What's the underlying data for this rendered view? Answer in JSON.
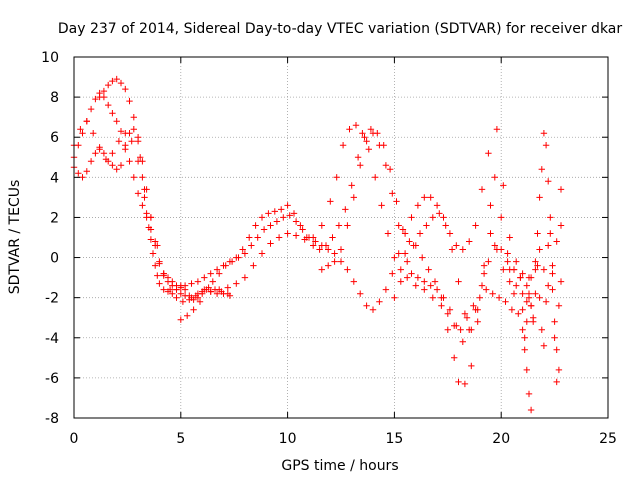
{
  "chart_data": {
    "type": "scatter",
    "title": "Day 237 of 2014, Sidereal Day-to-day VTEC variation (SDTVAR) for receiver dkar",
    "xlabel": "GPS time / hours",
    "ylabel": "SDTVAR / TECUs",
    "xlim": [
      0,
      25
    ],
    "ylim": [
      -8,
      10
    ],
    "xticks": [
      0,
      5,
      10,
      15,
      20,
      25
    ],
    "yticks": [
      -8,
      -6,
      -4,
      -2,
      0,
      2,
      4,
      6,
      8,
      10
    ],
    "grid": true,
    "legend": "none",
    "marker": "+",
    "colors": {
      "series": "#ff0000",
      "axis": "#000000",
      "grid": "#a0a0a0",
      "background": "#ffffff"
    },
    "series": [
      {
        "name": "trace-a",
        "x": [
          0.0,
          0.2,
          0.4,
          0.6,
          0.8,
          1.0,
          1.2,
          1.4,
          1.6,
          1.8,
          2.0,
          2.2,
          2.4,
          2.6,
          2.8,
          3.0,
          3.1,
          3.2,
          3.3,
          3.4,
          3.5,
          3.6,
          3.7,
          3.8,
          3.9,
          4.0,
          4.2,
          4.4,
          4.6,
          4.8,
          5.0,
          5.2,
          5.4,
          5.6,
          5.8,
          6.0,
          6.4,
          6.8,
          7.2,
          7.6,
          8.0,
          8.4,
          8.8,
          9.2,
          9.6,
          10.0,
          10.4,
          10.8,
          11.2,
          11.6,
          12.0,
          12.3,
          12.6,
          12.9,
          13.2,
          13.5,
          13.8,
          14.1,
          14.4,
          14.7,
          15.0,
          15.3,
          15.6,
          16.0,
          16.4,
          16.8,
          17.2,
          17.5,
          17.8,
          18.0,
          18.3,
          18.6,
          18.9,
          19.2,
          19.5,
          19.8,
          20.1,
          20.4,
          20.7,
          21.0,
          21.2,
          21.4
        ],
        "y": [
          4.5,
          4.2,
          4.0,
          4.3,
          4.8,
          5.2,
          5.5,
          5.2,
          4.8,
          4.6,
          4.4,
          4.6,
          5.4,
          6.2,
          6.4,
          5.8,
          5.0,
          4.0,
          3.0,
          2.2,
          1.5,
          0.9,
          0.2,
          -0.4,
          -0.9,
          -1.3,
          -1.6,
          -1.7,
          -1.8,
          -1.6,
          -1.4,
          -1.6,
          -1.9,
          -2.1,
          -2.0,
          -1.8,
          -1.7,
          -1.6,
          -1.5,
          -1.3,
          -1.0,
          -0.4,
          0.2,
          0.7,
          1.0,
          1.2,
          1.1,
          0.9,
          1.0,
          1.6,
          2.8,
          4.0,
          5.6,
          6.4,
          6.6,
          6.2,
          5.4,
          4.0,
          2.6,
          1.2,
          0.0,
          -0.6,
          -1.0,
          -1.4,
          -1.6,
          -2.0,
          -2.4,
          -3.6,
          -5.0,
          -6.2,
          -6.3,
          -5.4,
          -3.2,
          -0.8,
          1.2,
          0.4,
          -0.6,
          -1.2,
          -1.4,
          -1.8,
          -2.2,
          -2.4
        ]
      },
      {
        "name": "trace-b",
        "x": [
          0.0,
          0.2,
          0.4,
          0.6,
          0.8,
          1.0,
          1.2,
          1.4,
          1.6,
          1.8,
          2.0,
          2.2,
          2.4,
          2.6,
          2.8,
          3.0,
          3.2,
          3.4,
          3.6,
          3.8,
          4.0,
          4.2,
          4.4,
          4.6,
          4.8,
          5.0,
          5.2,
          5.5,
          5.8,
          6.1,
          6.4,
          6.7,
          7.0,
          7.3
        ],
        "y": [
          5.0,
          5.6,
          6.2,
          6.8,
          7.4,
          7.9,
          8.2,
          8.0,
          7.6,
          7.2,
          6.8,
          6.3,
          5.6,
          4.8,
          4.0,
          3.2,
          2.6,
          2.0,
          1.4,
          0.6,
          -0.3,
          -0.9,
          -1.2,
          -1.4,
          -1.6,
          -1.8,
          -1.9,
          -2.0,
          -1.8,
          -1.6,
          -1.7,
          -1.8,
          -1.8,
          -1.9
        ]
      },
      {
        "name": "trace-c",
        "x": [
          0.0,
          0.3,
          0.6,
          0.9,
          1.2,
          1.5,
          1.8,
          2.1,
          2.4,
          2.7,
          3.0,
          3.3,
          3.6,
          3.9,
          4.2,
          4.5,
          4.8,
          5.1,
          5.4,
          5.7,
          6.0,
          6.3,
          6.6,
          6.9,
          7.2
        ],
        "y": [
          5.6,
          6.4,
          6.8,
          6.2,
          5.4,
          4.9,
          5.2,
          5.8,
          6.2,
          5.8,
          4.8,
          3.4,
          2.0,
          0.6,
          -0.8,
          -1.6,
          -2.0,
          -2.2,
          -2.1,
          -1.9,
          -1.7,
          -1.5,
          -1.6,
          -1.7,
          -1.8
        ]
      },
      {
        "name": "trace-d",
        "x": [
          1.2,
          1.4,
          1.6,
          1.8,
          2.0,
          2.2,
          2.4,
          2.6,
          2.8,
          3.0,
          3.2,
          3.4,
          3.6,
          3.8,
          4.0,
          4.2,
          4.4,
          4.6,
          4.8,
          5.0,
          5.2,
          5.5,
          5.8,
          6.1,
          6.4,
          6.7,
          7.0,
          7.3,
          7.6,
          7.9,
          8.2,
          8.5,
          8.8,
          9.1,
          9.4,
          9.7,
          10.0,
          10.3,
          10.6,
          10.9,
          11.2,
          11.5,
          11.8,
          12.1,
          12.4,
          12.7,
          13.0,
          13.3,
          13.6,
          13.9,
          14.2,
          14.5,
          14.8,
          15.1,
          15.4,
          15.7,
          16.0,
          16.3,
          16.6,
          16.9,
          17.2,
          17.5,
          17.8,
          18.1,
          18.4,
          18.7,
          19.0,
          19.3,
          19.6,
          19.9,
          20.2,
          20.5
        ],
        "y": [
          8.0,
          8.3,
          8.6,
          8.8,
          8.9,
          8.7,
          8.4,
          7.8,
          7.0,
          6.0,
          4.8,
          3.4,
          2.0,
          0.8,
          -0.2,
          -0.8,
          -1.0,
          -1.2,
          -1.4,
          -1.5,
          -1.4,
          -1.3,
          -1.2,
          -1.0,
          -0.8,
          -0.6,
          -0.4,
          -0.2,
          0.0,
          0.4,
          1.0,
          1.6,
          2.0,
          2.2,
          2.3,
          2.4,
          2.6,
          2.2,
          1.6,
          1.0,
          0.6,
          0.4,
          0.6,
          1.0,
          1.6,
          2.4,
          3.6,
          5.0,
          6.0,
          6.4,
          6.2,
          5.6,
          4.4,
          2.8,
          1.4,
          0.8,
          0.6,
          0.0,
          -0.6,
          -1.2,
          -2.0,
          -2.8,
          -3.4,
          -3.6,
          -3.0,
          -2.4,
          -2.0,
          -1.6,
          -1.8,
          -2.0,
          -2.2,
          -2.6
        ]
      },
      {
        "name": "trace-e",
        "x": [
          5.0,
          5.3,
          5.6,
          5.9,
          6.2,
          6.5,
          6.8,
          7.1,
          7.4,
          7.7,
          8.0,
          8.3,
          8.6,
          8.9,
          9.2,
          9.5,
          9.8,
          10.1,
          10.4,
          10.7,
          11.0,
          11.3,
          11.6,
          11.9,
          12.2,
          12.5,
          12.8,
          13.1,
          13.4,
          13.7,
          14.0,
          14.3,
          14.6,
          14.9,
          15.2,
          15.5,
          15.8,
          16.1,
          16.4,
          16.7,
          17.0,
          17.3,
          17.6,
          17.9,
          18.2,
          18.5,
          18.8,
          19.1,
          19.4,
          19.7,
          20.0,
          20.3,
          20.6,
          20.9,
          21.2
        ],
        "y": [
          -3.1,
          -2.9,
          -2.6,
          -2.2,
          -1.6,
          -1.2,
          -0.8,
          -0.4,
          -0.2,
          0.0,
          0.2,
          0.6,
          1.0,
          1.4,
          1.6,
          1.8,
          2.0,
          2.1,
          1.8,
          1.4,
          1.0,
          0.8,
          0.6,
          0.4,
          0.2,
          -0.2,
          -0.6,
          -1.2,
          -1.8,
          -2.4,
          -2.6,
          -2.2,
          -1.6,
          -0.8,
          0.2,
          1.2,
          2.0,
          2.6,
          3.0,
          3.0,
          2.6,
          2.0,
          1.2,
          0.6,
          0.4,
          0.8,
          1.6,
          3.4,
          5.2,
          4.0,
          2.0,
          0.2,
          -0.6,
          -1.0,
          -1.4
        ]
      },
      {
        "name": "trace-f",
        "x": [
          11.6,
          11.9,
          12.2,
          12.5,
          12.8,
          13.1,
          13.4,
          13.7,
          14.0,
          14.3,
          14.6,
          14.9,
          15.2,
          15.5,
          15.8,
          16.1,
          16.4,
          16.7,
          17.0,
          17.3,
          17.6,
          17.9,
          18.2,
          18.5,
          18.8,
          19.1,
          19.4,
          19.7,
          20.0,
          20.3,
          20.6,
          20.9
        ],
        "y": [
          -0.6,
          -0.4,
          -0.2,
          0.4,
          1.6,
          3.0,
          4.6,
          5.8,
          6.2,
          5.6,
          4.6,
          3.2,
          1.6,
          0.2,
          -0.8,
          -1.0,
          -1.2,
          -1.4,
          -1.6,
          -2.0,
          -2.6,
          -3.4,
          -4.2,
          -3.6,
          -2.6,
          -1.4,
          -0.2,
          0.6,
          0.4,
          -0.2,
          -0.6,
          -1.0
        ]
      },
      {
        "name": "trace-g",
        "x": [
          15.0,
          15.3,
          15.6,
          15.9,
          16.2,
          16.5,
          16.8,
          17.1,
          17.4,
          17.7,
          18.0,
          18.3,
          18.6,
          18.9,
          19.2,
          19.5,
          19.8,
          20.1,
          20.4,
          20.7,
          21.0,
          21.3
        ],
        "y": [
          -2.0,
          -1.2,
          -0.2,
          0.6,
          1.2,
          1.6,
          2.0,
          2.2,
          1.6,
          0.4,
          -1.2,
          -2.8,
          -3.6,
          -2.6,
          -0.4,
          2.6,
          6.4,
          3.6,
          1.0,
          -0.2,
          -0.8,
          -2.0
        ]
      },
      {
        "name": "trace-h",
        "x": [
          21.0,
          21.1,
          21.2,
          21.3,
          21.4,
          21.5,
          21.6,
          21.7,
          21.8,
          21.9,
          22.0,
          22.1,
          22.2,
          22.3,
          22.4,
          22.5,
          22.6,
          22.7,
          22.8
        ],
        "y": [
          -2.6,
          -4.0,
          -5.6,
          -6.8,
          -7.6,
          -3.0,
          -0.6,
          1.2,
          3.0,
          4.4,
          6.2,
          5.6,
          3.8,
          1.2,
          -1.6,
          -4.0,
          -6.2,
          -2.4,
          3.4
        ]
      },
      {
        "name": "trace-i",
        "x": [
          21.3,
          21.4,
          21.5,
          21.6,
          21.7,
          21.8,
          21.9,
          22.0,
          22.1,
          22.2,
          22.3,
          22.4,
          22.5,
          22.6,
          22.7,
          22.8
        ],
        "y": [
          -1.0,
          -2.4,
          -3.2,
          -1.8,
          -0.4,
          -2.0,
          -3.6,
          -4.4,
          -2.2,
          0.6,
          2.0,
          -0.8,
          -3.2,
          -4.6,
          -5.6,
          -1.2
        ]
      },
      {
        "name": "trace-j",
        "x": [
          20.4,
          20.6,
          20.8,
          21.0,
          21.1,
          21.2,
          21.3,
          21.4,
          21.6,
          21.8,
          22.0,
          22.2,
          22.4,
          22.6,
          22.8
        ],
        "y": [
          -0.6,
          -1.8,
          -2.8,
          -3.6,
          -4.6,
          -3.2,
          -1.8,
          -1.0,
          -0.2,
          0.4,
          -0.6,
          -1.4,
          -0.4,
          0.8,
          1.6
        ]
      }
    ]
  }
}
